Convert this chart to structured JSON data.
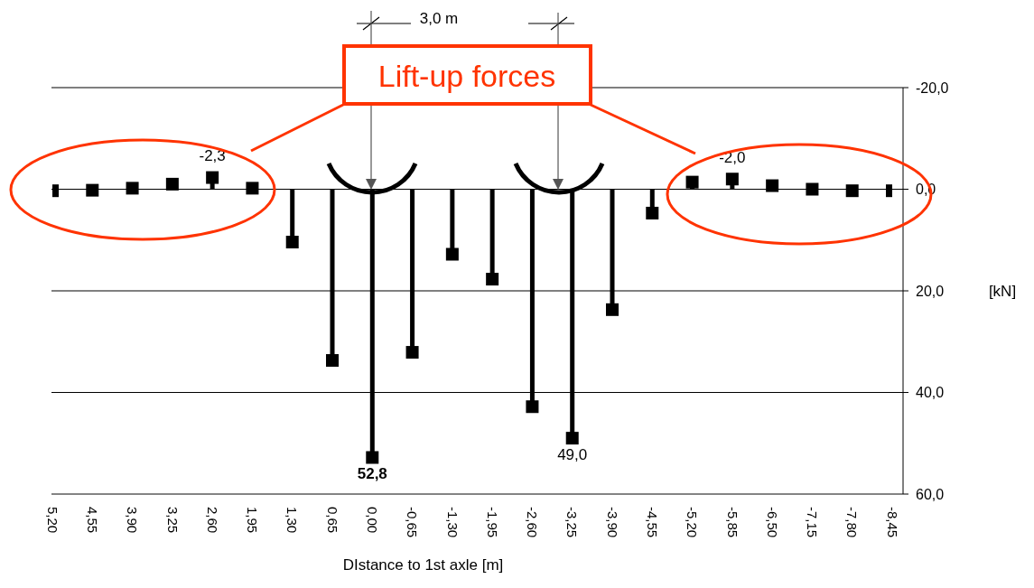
{
  "chart_data": {
    "type": "lollipop",
    "xlabel": "DIstance to 1st axle [m]",
    "ylabel": "[kN]",
    "categories": [
      "5,20",
      "4,55",
      "3,90",
      "3,25",
      "2,60",
      "1,95",
      "1,30",
      "0,65",
      "0,00",
      "-0,65",
      "-1,30",
      "-1,95",
      "-2,60",
      "-3,25",
      "-3,90",
      "-4,55",
      "-5,20",
      "-5,85",
      "-6,50",
      "-7,15",
      "-7,80",
      "-8,45"
    ],
    "values": [
      0.3,
      0.2,
      -0.2,
      -1.0,
      -2.3,
      -0.2,
      10.4,
      33.7,
      52.8,
      32.1,
      12.8,
      17.7,
      42.8,
      49.0,
      23.7,
      4.7,
      -1.4,
      -2.0,
      -0.7,
      0.0,
      0.3,
      0.3
    ],
    "value_labels": [
      null,
      null,
      null,
      null,
      "-2,3",
      null,
      null,
      null,
      "52,8",
      null,
      null,
      null,
      null,
      "49,0",
      null,
      null,
      null,
      "-2,0",
      null,
      null,
      null,
      null
    ],
    "color": "#000000",
    "marker": "square",
    "ylim": [
      60,
      -20
    ],
    "yticks": [
      {
        "value": -20,
        "label": "-20,0"
      },
      {
        "value": 0,
        "label": "0,0"
      },
      {
        "value": 20,
        "label": "20,0"
      },
      {
        "value": 40,
        "label": "40,0"
      },
      {
        "value": 60,
        "label": "60,0"
      }
    ],
    "grid": "y",
    "annotations": [
      "Lift-up forces",
      "3,0 m"
    ]
  }
}
